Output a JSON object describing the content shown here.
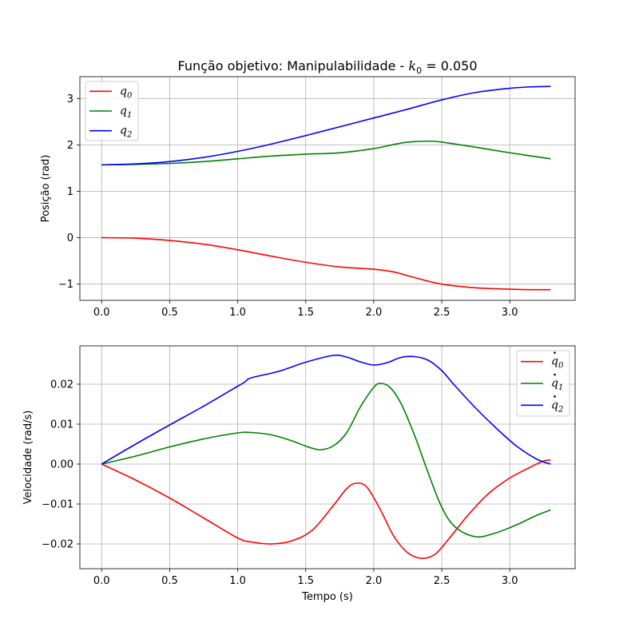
{
  "chart_data": [
    {
      "type": "line",
      "title": "Função objetivo: Manipulabilidade - ",
      "title_math": {
        "var": "k",
        "sub": "0",
        "rest": " = 0.050"
      },
      "xlabel": "",
      "ylabel": "Posição (rad)",
      "xlim": [
        -0.16,
        3.48
      ],
      "ylim": [
        -1.35,
        3.47
      ],
      "xticks": [
        0.0,
        0.5,
        1.0,
        1.5,
        2.0,
        2.5,
        3.0
      ],
      "xtick_labels": [
        "0.0",
        "0.5",
        "1.0",
        "1.5",
        "2.0",
        "2.5",
        "3.0"
      ],
      "yticks": [
        -1,
        0,
        1,
        2,
        3
      ],
      "ytick_labels": [
        "−1",
        "0",
        "1",
        "2",
        "3"
      ],
      "grid": true,
      "legend_position": "top-left",
      "series": [
        {
          "name": "q0",
          "label_var": "q",
          "label_sub": "0",
          "dot": false,
          "color": "#ff0000",
          "x": [
            0,
            0.25,
            0.5,
            0.75,
            1.0,
            1.25,
            1.5,
            1.75,
            2.0,
            2.15,
            2.3,
            2.5,
            2.75,
            3.0,
            3.15,
            3.3
          ],
          "y": [
            0,
            -0.01,
            -0.06,
            -0.14,
            -0.26,
            -0.4,
            -0.53,
            -0.63,
            -0.68,
            -0.74,
            -0.86,
            -1.0,
            -1.08,
            -1.11,
            -1.12,
            -1.12
          ]
        },
        {
          "name": "q1",
          "label_var": "q",
          "label_sub": "1",
          "dot": false,
          "color": "#008000",
          "x": [
            0,
            0.25,
            0.5,
            0.75,
            1.0,
            1.25,
            1.5,
            1.75,
            2.0,
            2.15,
            2.25,
            2.4,
            2.5,
            2.75,
            3.0,
            3.3
          ],
          "y": [
            1.57,
            1.58,
            1.6,
            1.64,
            1.7,
            1.76,
            1.8,
            1.83,
            1.92,
            2.01,
            2.06,
            2.08,
            2.06,
            1.95,
            1.83,
            1.7
          ]
        },
        {
          "name": "q2",
          "label_var": "q",
          "label_sub": "2",
          "dot": false,
          "color": "#0000ff",
          "x": [
            0,
            0.25,
            0.5,
            0.75,
            1.0,
            1.25,
            1.5,
            1.75,
            2.0,
            2.25,
            2.5,
            2.75,
            3.0,
            3.15,
            3.3
          ],
          "y": [
            1.57,
            1.59,
            1.64,
            1.73,
            1.86,
            2.02,
            2.2,
            2.39,
            2.58,
            2.77,
            2.97,
            3.13,
            3.22,
            3.25,
            3.26
          ]
        }
      ]
    },
    {
      "type": "line",
      "title": "",
      "xlabel": "Tempo (s)",
      "ylabel": "Velocidade (rad/s)",
      "xlim": [
        -0.16,
        3.48
      ],
      "ylim": [
        -0.0262,
        0.0296
      ],
      "xticks": [
        0.0,
        0.5,
        1.0,
        1.5,
        2.0,
        2.5,
        3.0
      ],
      "xtick_labels": [
        "0.0",
        "0.5",
        "1.0",
        "1.5",
        "2.0",
        "2.5",
        "3.0"
      ],
      "yticks": [
        -0.02,
        -0.01,
        0.0,
        0.01,
        0.02
      ],
      "ytick_labels": [
        "−0.02",
        "−0.01",
        "0.00",
        "0.01",
        "0.02"
      ],
      "grid": true,
      "legend_position": "top-right",
      "series": [
        {
          "name": "q̇0",
          "label_var": "q",
          "label_sub": "0",
          "dot": true,
          "color": "#ff0000",
          "x": [
            0,
            0.25,
            0.5,
            0.75,
            1.0,
            1.1,
            1.25,
            1.4,
            1.55,
            1.7,
            1.8,
            1.87,
            1.95,
            2.05,
            2.15,
            2.25,
            2.35,
            2.45,
            2.55,
            2.7,
            2.85,
            3.0,
            3.15,
            3.25,
            3.3
          ],
          "y": [
            0,
            -0.004,
            -0.0085,
            -0.0135,
            -0.0185,
            -0.0195,
            -0.02,
            -0.0192,
            -0.0165,
            -0.0105,
            -0.0062,
            -0.0048,
            -0.0058,
            -0.0115,
            -0.0182,
            -0.0222,
            -0.0236,
            -0.0226,
            -0.0188,
            -0.0125,
            -0.0072,
            -0.0035,
            -0.0008,
            0.0008,
            0.001
          ]
        },
        {
          "name": "q̇1",
          "label_var": "q",
          "label_sub": "1",
          "dot": true,
          "color": "#008000",
          "x": [
            0,
            0.25,
            0.5,
            0.75,
            1.0,
            1.1,
            1.25,
            1.4,
            1.5,
            1.6,
            1.7,
            1.8,
            1.9,
            2.0,
            2.05,
            2.12,
            2.2,
            2.3,
            2.4,
            2.5,
            2.6,
            2.75,
            2.9,
            3.05,
            3.2,
            3.3
          ],
          "y": [
            0,
            0.002,
            0.0043,
            0.0063,
            0.0078,
            0.0079,
            0.0073,
            0.0058,
            0.0045,
            0.0036,
            0.0045,
            0.0078,
            0.0142,
            0.0192,
            0.0202,
            0.0192,
            0.0152,
            0.0072,
            -0.0022,
            -0.0108,
            -0.0158,
            -0.0182,
            -0.0172,
            -0.0152,
            -0.0128,
            -0.0115
          ]
        },
        {
          "name": "q̇2",
          "label_var": "q",
          "label_sub": "2",
          "dot": true,
          "color": "#0000ff",
          "x": [
            0,
            0.25,
            0.5,
            0.75,
            1.0,
            1.05,
            1.1,
            1.3,
            1.5,
            1.7,
            1.8,
            1.9,
            2.0,
            2.1,
            2.2,
            2.3,
            2.4,
            2.5,
            2.6,
            2.75,
            2.9,
            3.05,
            3.2,
            3.3
          ],
          "y": [
            0,
            0.005,
            0.0098,
            0.0145,
            0.0195,
            0.0205,
            0.0216,
            0.0232,
            0.0255,
            0.0272,
            0.0268,
            0.0256,
            0.0248,
            0.0254,
            0.0267,
            0.0269,
            0.026,
            0.0234,
            0.0195,
            0.014,
            0.009,
            0.0045,
            0.0012,
            0.0
          ]
        }
      ]
    }
  ]
}
